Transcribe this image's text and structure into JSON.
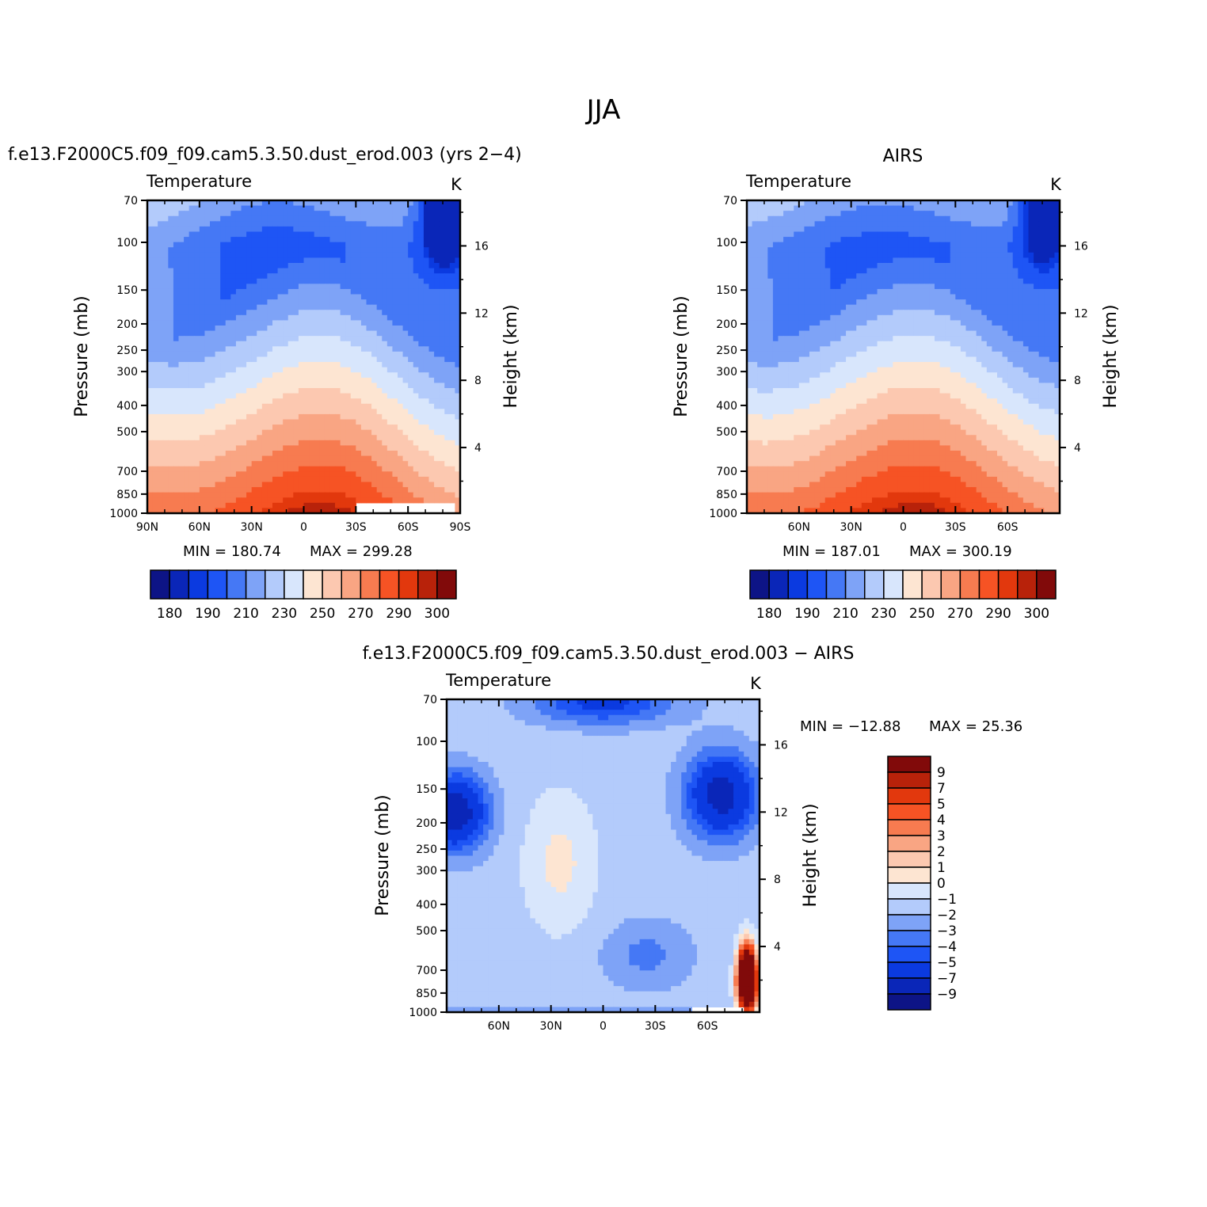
{
  "figure": {
    "title": "JJA"
  },
  "colors": {
    "temperature_levels": [
      "#0d1486",
      "#0a26b8",
      "#0b3ae0",
      "#1e55f5",
      "#4578f5",
      "#7ea3f7",
      "#b3cbfb",
      "#d8e6fc",
      "#fde5d2",
      "#fcc8b0",
      "#f9a583",
      "#f77b50",
      "#f65324",
      "#e2380d",
      "#b8220a",
      "#810a0a"
    ],
    "difference_levels": [
      "#810a0a",
      "#b8220a",
      "#e2380d",
      "#f65324",
      "#f77b50",
      "#f9a583",
      "#fcc8b0",
      "#fde5d2",
      "#d8e6fc",
      "#b3cbfb",
      "#7ea3f7",
      "#4578f5",
      "#1e55f5",
      "#0b3ae0",
      "#0a26b8",
      "#0d1486"
    ]
  },
  "chart_data": [
    {
      "type": "heatmap",
      "title": "f.e13.F2000C5.f09_f09.cam5.3.50.dust_erod.003 (yrs 2−4)",
      "variable": "Temperature",
      "units": "K",
      "xlabel": "",
      "ylabel": "Pressure (mb)",
      "y2label": "Height (km)",
      "x_ticks": [
        "90N",
        "60N",
        "30N",
        "0",
        "30S",
        "60S",
        "90S"
      ],
      "x_range": [
        90,
        -90
      ],
      "y_ticks": [
        70,
        100,
        150,
        200,
        250,
        300,
        400,
        500,
        700,
        850,
        1000
      ],
      "y_range": [
        70,
        1000
      ],
      "y_scale": "log",
      "y2_ticks": [
        16,
        12,
        8,
        4
      ],
      "min_label": "MIN = 180.74",
      "max_label": "MAX = 299.28",
      "colorbar_labels": [
        "180",
        "190",
        "210",
        "230",
        "250",
        "270",
        "290",
        "300"
      ],
      "levels": [
        180,
        185,
        190,
        200,
        210,
        220,
        230,
        240,
        250,
        260,
        270,
        280,
        290,
        295,
        300
      ]
    },
    {
      "type": "heatmap",
      "title": "AIRS",
      "variable": "Temperature",
      "units": "K",
      "xlabel": "",
      "ylabel": "Pressure (mb)",
      "y2label": "Height (km)",
      "x_ticks": [
        "60N",
        "30N",
        "0",
        "30S",
        "60S"
      ],
      "x_range": [
        90,
        -90
      ],
      "y_ticks": [
        70,
        100,
        150,
        200,
        250,
        300,
        400,
        500,
        700,
        850,
        1000
      ],
      "y_range": [
        70,
        1000
      ],
      "y_scale": "log",
      "y2_ticks": [
        16,
        12,
        8,
        4
      ],
      "min_label": "MIN = 187.01",
      "max_label": "MAX = 300.19",
      "colorbar_labels": [
        "180",
        "190",
        "210",
        "230",
        "250",
        "270",
        "290",
        "300"
      ],
      "levels": [
        180,
        185,
        190,
        200,
        210,
        220,
        230,
        240,
        250,
        260,
        270,
        280,
        290,
        295,
        300
      ]
    },
    {
      "type": "heatmap",
      "title": "f.e13.F2000C5.f09_f09.cam5.3.50.dust_erod.003 − AIRS",
      "variable": "Temperature",
      "units": "K",
      "xlabel": "",
      "ylabel": "Pressure (mb)",
      "y2label": "Height (km)",
      "x_ticks": [
        "60N",
        "30N",
        "0",
        "30S",
        "60S"
      ],
      "x_range": [
        90,
        -90
      ],
      "y_ticks": [
        70,
        100,
        150,
        200,
        250,
        300,
        400,
        500,
        700,
        850,
        1000
      ],
      "y_range": [
        70,
        1000
      ],
      "y_scale": "log",
      "y2_ticks": [
        16,
        12,
        8,
        4
      ],
      "min_label": "MIN = −12.88",
      "max_label": "MAX =  25.36",
      "colorbar_labels": [
        "9",
        "7",
        "5",
        "4",
        "3",
        "2",
        "1",
        "0",
        "−1",
        "−2",
        "−3",
        "−4",
        "−5",
        "−7",
        "−9"
      ],
      "levels": [
        9,
        7,
        5,
        4,
        3,
        2,
        1,
        0,
        -1,
        -2,
        -3,
        -4,
        -5,
        -7,
        -9
      ]
    }
  ]
}
